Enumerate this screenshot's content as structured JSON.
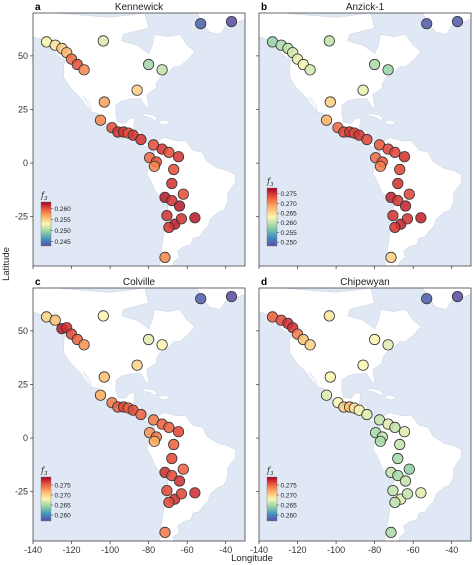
{
  "figure": {
    "xlabel": "Longitude",
    "ylabel": "Latitude",
    "colors": {
      "ocean": "#dfe8f4",
      "land": "#ffffff",
      "frame": "#444444"
    }
  },
  "chart_data": [
    {
      "type": "scatter",
      "letter": "a",
      "title": "Kennewick",
      "xlim": [
        -140,
        -30
      ],
      "ylim": [
        -48,
        70
      ],
      "xticks": [
        -140,
        -120,
        -100,
        -80,
        -60,
        -40
      ],
      "yticks": [
        50,
        25,
        0,
        -25
      ],
      "show_x_tick_labels": false,
      "show_y_tick_labels": true,
      "colorbar": {
        "label": "f3",
        "ticks": [
          0.26,
          0.255,
          0.25,
          0.245
        ],
        "tick_labels": [
          "0.260",
          "0.255",
          "0.250",
          "0.245"
        ],
        "range": [
          0.243,
          0.263
        ]
      },
      "points": [
        {
          "x": -133.0,
          "y": 56.5,
          "v": 0.253
        },
        {
          "x": -128.5,
          "y": 55.0,
          "v": 0.254
        },
        {
          "x": -125.0,
          "y": 53.5,
          "v": 0.255
        },
        {
          "x": -122.5,
          "y": 51.5,
          "v": 0.256
        },
        {
          "x": -120.0,
          "y": 48.5,
          "v": 0.259
        },
        {
          "x": -117.0,
          "y": 46.0,
          "v": 0.26
        },
        {
          "x": -113.5,
          "y": 43.5,
          "v": 0.258
        },
        {
          "x": -103.5,
          "y": 57.0,
          "v": 0.252
        },
        {
          "x": -80.0,
          "y": 46.0,
          "v": 0.25
        },
        {
          "x": -73.0,
          "y": 43.5,
          "v": 0.251
        },
        {
          "x": -53.0,
          "y": 65.0,
          "v": 0.244
        },
        {
          "x": -37.0,
          "y": 66.0,
          "v": 0.243
        },
        {
          "x": -86.0,
          "y": 34.0,
          "v": 0.255
        },
        {
          "x": -103.0,
          "y": 28.5,
          "v": 0.257
        },
        {
          "x": -105.0,
          "y": 20.0,
          "v": 0.258
        },
        {
          "x": -99.0,
          "y": 16.5,
          "v": 0.26
        },
        {
          "x": -96.0,
          "y": 14.5,
          "v": 0.261
        },
        {
          "x": -93.0,
          "y": 14.5,
          "v": 0.261
        },
        {
          "x": -90.5,
          "y": 14.0,
          "v": 0.26
        },
        {
          "x": -88.0,
          "y": 13.0,
          "v": 0.261
        },
        {
          "x": -84.0,
          "y": 11.0,
          "v": 0.261
        },
        {
          "x": -77.5,
          "y": 8.5,
          "v": 0.26
        },
        {
          "x": -73.0,
          "y": 6.5,
          "v": 0.261
        },
        {
          "x": -79.5,
          "y": 2.5,
          "v": 0.259
        },
        {
          "x": -76.0,
          "y": 0.5,
          "v": 0.26
        },
        {
          "x": -69.5,
          "y": 5.0,
          "v": 0.26
        },
        {
          "x": -64.5,
          "y": 3.0,
          "v": 0.261
        },
        {
          "x": -77.0,
          "y": -1.5,
          "v": 0.258
        },
        {
          "x": -67.0,
          "y": -3.0,
          "v": 0.26
        },
        {
          "x": -68.0,
          "y": -9.5,
          "v": 0.261
        },
        {
          "x": -71.5,
          "y": -16.0,
          "v": 0.262
        },
        {
          "x": -68.0,
          "y": -17.5,
          "v": 0.261
        },
        {
          "x": -64.0,
          "y": -20.0,
          "v": 0.262
        },
        {
          "x": -62.0,
          "y": -14.5,
          "v": 0.26
        },
        {
          "x": -70.5,
          "y": -24.5,
          "v": 0.261
        },
        {
          "x": -66.5,
          "y": -28.5,
          "v": 0.262
        },
        {
          "x": -63.0,
          "y": -26.0,
          "v": 0.261
        },
        {
          "x": -56.0,
          "y": -25.5,
          "v": 0.262
        },
        {
          "x": -69.5,
          "y": -30.0,
          "v": 0.261
        },
        {
          "x": -71.5,
          "y": -44.0,
          "v": 0.258
        }
      ]
    },
    {
      "type": "scatter",
      "letter": "b",
      "title": "Anzick-1",
      "xlim": [
        -140,
        -30
      ],
      "ylim": [
        -48,
        70
      ],
      "xticks": [
        -140,
        -120,
        -100,
        -80,
        -60,
        -40
      ],
      "yticks": [
        50,
        25,
        0,
        -25
      ],
      "show_x_tick_labels": false,
      "show_y_tick_labels": false,
      "colorbar": {
        "label": "f3",
        "ticks": [
          0.275,
          0.27,
          0.265,
          0.26,
          0.255,
          0.25
        ],
        "tick_labels": [
          "0.275",
          "0.270",
          "0.265",
          "0.260",
          "0.255",
          "0.250"
        ],
        "range": [
          0.248,
          0.278
        ]
      },
      "points": [
        {
          "x": -133.0,
          "y": 56.5,
          "v": 0.258
        },
        {
          "x": -128.5,
          "y": 55.0,
          "v": 0.259
        },
        {
          "x": -125.0,
          "y": 53.5,
          "v": 0.26
        },
        {
          "x": -122.5,
          "y": 51.5,
          "v": 0.261
        },
        {
          "x": -120.0,
          "y": 48.5,
          "v": 0.262
        },
        {
          "x": -117.0,
          "y": 46.0,
          "v": 0.263
        },
        {
          "x": -113.5,
          "y": 43.5,
          "v": 0.261
        },
        {
          "x": -103.5,
          "y": 57.0,
          "v": 0.26
        },
        {
          "x": -80.0,
          "y": 46.0,
          "v": 0.259
        },
        {
          "x": -73.0,
          "y": 43.5,
          "v": 0.258
        },
        {
          "x": -53.0,
          "y": 65.0,
          "v": 0.249
        },
        {
          "x": -37.0,
          "y": 66.0,
          "v": 0.249
        },
        {
          "x": -86.0,
          "y": 34.0,
          "v": 0.262
        },
        {
          "x": -103.0,
          "y": 28.5,
          "v": 0.266
        },
        {
          "x": -105.0,
          "y": 20.0,
          "v": 0.268
        },
        {
          "x": -99.0,
          "y": 16.5,
          "v": 0.272
        },
        {
          "x": -96.0,
          "y": 14.5,
          "v": 0.274
        },
        {
          "x": -93.0,
          "y": 14.5,
          "v": 0.275
        },
        {
          "x": -90.5,
          "y": 14.0,
          "v": 0.274
        },
        {
          "x": -88.0,
          "y": 13.0,
          "v": 0.275
        },
        {
          "x": -84.0,
          "y": 11.0,
          "v": 0.274
        },
        {
          "x": -77.5,
          "y": 8.5,
          "v": 0.273
        },
        {
          "x": -73.0,
          "y": 6.5,
          "v": 0.274
        },
        {
          "x": -79.5,
          "y": 2.5,
          "v": 0.272
        },
        {
          "x": -76.0,
          "y": 0.5,
          "v": 0.273
        },
        {
          "x": -69.5,
          "y": 5.0,
          "v": 0.274
        },
        {
          "x": -64.5,
          "y": 3.0,
          "v": 0.275
        },
        {
          "x": -77.0,
          "y": -1.5,
          "v": 0.271
        },
        {
          "x": -67.0,
          "y": -3.0,
          "v": 0.274
        },
        {
          "x": -68.0,
          "y": -9.5,
          "v": 0.275
        },
        {
          "x": -71.5,
          "y": -16.0,
          "v": 0.276
        },
        {
          "x": -68.0,
          "y": -17.5,
          "v": 0.275
        },
        {
          "x": -64.0,
          "y": -20.0,
          "v": 0.276
        },
        {
          "x": -62.0,
          "y": -14.5,
          "v": 0.274
        },
        {
          "x": -70.5,
          "y": -24.5,
          "v": 0.275
        },
        {
          "x": -66.5,
          "y": -28.5,
          "v": 0.276
        },
        {
          "x": -63.0,
          "y": -26.0,
          "v": 0.275
        },
        {
          "x": -56.0,
          "y": -25.5,
          "v": 0.276
        },
        {
          "x": -69.5,
          "y": -30.0,
          "v": 0.275
        },
        {
          "x": -71.5,
          "y": -44.0,
          "v": 0.266
        }
      ]
    },
    {
      "type": "scatter",
      "letter": "c",
      "title": "Colville",
      "xlim": [
        -140,
        -30
      ],
      "ylim": [
        -48,
        70
      ],
      "xticks": [
        -140,
        -120,
        -100,
        -80,
        -60,
        -40
      ],
      "yticks": [
        50,
        25,
        0,
        -25
      ],
      "show_x_tick_labels": true,
      "show_y_tick_labels": true,
      "colorbar": {
        "label": "f3",
        "ticks": [
          0.275,
          0.27,
          0.265,
          0.26
        ],
        "tick_labels": [
          "0.275",
          "0.270",
          "0.265",
          "0.260"
        ],
        "range": [
          0.257,
          0.279
        ]
      },
      "points": [
        {
          "x": -133.0,
          "y": 56.5,
          "v": 0.27
        },
        {
          "x": -128.5,
          "y": 55.0,
          "v": 0.271
        },
        {
          "x": -125.0,
          "y": 51.0,
          "v": 0.278
        },
        {
          "x": -122.5,
          "y": 51.5,
          "v": 0.277
        },
        {
          "x": -120.0,
          "y": 48.5,
          "v": 0.276
        },
        {
          "x": -117.0,
          "y": 46.0,
          "v": 0.275
        },
        {
          "x": -113.5,
          "y": 43.5,
          "v": 0.273
        },
        {
          "x": -103.5,
          "y": 57.0,
          "v": 0.268
        },
        {
          "x": -80.0,
          "y": 46.0,
          "v": 0.267
        },
        {
          "x": -73.0,
          "y": 43.5,
          "v": 0.268
        },
        {
          "x": -53.0,
          "y": 65.0,
          "v": 0.258
        },
        {
          "x": -37.0,
          "y": 66.0,
          "v": 0.257
        },
        {
          "x": -86.0,
          "y": 34.0,
          "v": 0.27
        },
        {
          "x": -103.0,
          "y": 28.5,
          "v": 0.271
        },
        {
          "x": -105.0,
          "y": 20.0,
          "v": 0.272
        },
        {
          "x": -99.0,
          "y": 16.5,
          "v": 0.274
        },
        {
          "x": -96.0,
          "y": 14.5,
          "v": 0.275
        },
        {
          "x": -93.0,
          "y": 14.5,
          "v": 0.276
        },
        {
          "x": -90.5,
          "y": 14.0,
          "v": 0.275
        },
        {
          "x": -88.0,
          "y": 13.0,
          "v": 0.276
        },
        {
          "x": -84.0,
          "y": 11.0,
          "v": 0.275
        },
        {
          "x": -77.5,
          "y": 8.5,
          "v": 0.274
        },
        {
          "x": -73.0,
          "y": 6.5,
          "v": 0.275
        },
        {
          "x": -79.5,
          "y": 2.5,
          "v": 0.273
        },
        {
          "x": -76.0,
          "y": 0.5,
          "v": 0.274
        },
        {
          "x": -69.5,
          "y": 5.0,
          "v": 0.275
        },
        {
          "x": -64.5,
          "y": 3.0,
          "v": 0.276
        },
        {
          "x": -77.0,
          "y": -1.5,
          "v": 0.272
        },
        {
          "x": -67.0,
          "y": -3.0,
          "v": 0.275
        },
        {
          "x": -68.0,
          "y": -9.5,
          "v": 0.276
        },
        {
          "x": -71.5,
          "y": -16.0,
          "v": 0.277
        },
        {
          "x": -68.0,
          "y": -17.5,
          "v": 0.276
        },
        {
          "x": -64.0,
          "y": -20.0,
          "v": 0.277
        },
        {
          "x": -62.0,
          "y": -14.5,
          "v": 0.275
        },
        {
          "x": -70.5,
          "y": -24.5,
          "v": 0.276
        },
        {
          "x": -66.5,
          "y": -28.5,
          "v": 0.277
        },
        {
          "x": -63.0,
          "y": -26.0,
          "v": 0.276
        },
        {
          "x": -56.0,
          "y": -25.5,
          "v": 0.277
        },
        {
          "x": -69.5,
          "y": -30.0,
          "v": 0.276
        },
        {
          "x": -71.5,
          "y": -44.0,
          "v": 0.274
        }
      ]
    },
    {
      "type": "scatter",
      "letter": "d",
      "title": "Chipewyan",
      "xlim": [
        -140,
        -30
      ],
      "ylim": [
        -48,
        70
      ],
      "xticks": [
        -140,
        -120,
        -100,
        -80,
        -60,
        -40
      ],
      "yticks": [
        50,
        25,
        0,
        -25
      ],
      "show_x_tick_labels": true,
      "show_y_tick_labels": false,
      "colorbar": {
        "label": "f3",
        "ticks": [
          0.275,
          0.27,
          0.265,
          0.26
        ],
        "tick_labels": [
          "0.275",
          "0.270",
          "0.265",
          "0.260"
        ],
        "range": [
          0.257,
          0.279
        ]
      },
      "points": [
        {
          "x": -133.0,
          "y": 56.5,
          "v": 0.275
        },
        {
          "x": -128.5,
          "y": 55.0,
          "v": 0.276
        },
        {
          "x": -125.0,
          "y": 53.5,
          "v": 0.277
        },
        {
          "x": -122.5,
          "y": 51.5,
          "v": 0.277
        },
        {
          "x": -120.0,
          "y": 48.5,
          "v": 0.274
        },
        {
          "x": -117.0,
          "y": 46.0,
          "v": 0.271
        },
        {
          "x": -113.5,
          "y": 43.5,
          "v": 0.27
        },
        {
          "x": -103.5,
          "y": 57.0,
          "v": 0.269
        },
        {
          "x": -80.0,
          "y": 46.0,
          "v": 0.268
        },
        {
          "x": -73.0,
          "y": 43.5,
          "v": 0.267
        },
        {
          "x": -53.0,
          "y": 65.0,
          "v": 0.258
        },
        {
          "x": -37.0,
          "y": 66.0,
          "v": 0.257
        },
        {
          "x": -86.0,
          "y": 34.0,
          "v": 0.268
        },
        {
          "x": -103.0,
          "y": 28.5,
          "v": 0.268
        },
        {
          "x": -105.0,
          "y": 20.0,
          "v": 0.267
        },
        {
          "x": -99.0,
          "y": 16.5,
          "v": 0.268
        },
        {
          "x": -96.0,
          "y": 14.5,
          "v": 0.27
        },
        {
          "x": -93.0,
          "y": 14.5,
          "v": 0.271
        },
        {
          "x": -90.5,
          "y": 14.0,
          "v": 0.269
        },
        {
          "x": -88.0,
          "y": 13.0,
          "v": 0.268
        },
        {
          "x": -84.0,
          "y": 11.0,
          "v": 0.267
        },
        {
          "x": -77.5,
          "y": 8.5,
          "v": 0.266
        },
        {
          "x": -73.0,
          "y": 6.5,
          "v": 0.267
        },
        {
          "x": -79.5,
          "y": 2.5,
          "v": 0.265
        },
        {
          "x": -76.0,
          "y": 0.5,
          "v": 0.266
        },
        {
          "x": -69.5,
          "y": 5.0,
          "v": 0.266
        },
        {
          "x": -64.5,
          "y": 3.0,
          "v": 0.267
        },
        {
          "x": -77.0,
          "y": -1.5,
          "v": 0.265
        },
        {
          "x": -67.0,
          "y": -3.0,
          "v": 0.266
        },
        {
          "x": -68.0,
          "y": -9.5,
          "v": 0.265
        },
        {
          "x": -71.5,
          "y": -16.0,
          "v": 0.266
        },
        {
          "x": -68.0,
          "y": -17.5,
          "v": 0.265
        },
        {
          "x": -64.0,
          "y": -20.0,
          "v": 0.266
        },
        {
          "x": -62.0,
          "y": -14.5,
          "v": 0.264
        },
        {
          "x": -70.5,
          "y": -24.5,
          "v": 0.266
        },
        {
          "x": -66.5,
          "y": -28.5,
          "v": 0.267
        },
        {
          "x": -63.0,
          "y": -26.0,
          "v": 0.266
        },
        {
          "x": -56.0,
          "y": -25.5,
          "v": 0.267
        },
        {
          "x": -69.5,
          "y": -30.0,
          "v": 0.266
        },
        {
          "x": -71.5,
          "y": -44.0,
          "v": 0.265
        }
      ]
    }
  ]
}
